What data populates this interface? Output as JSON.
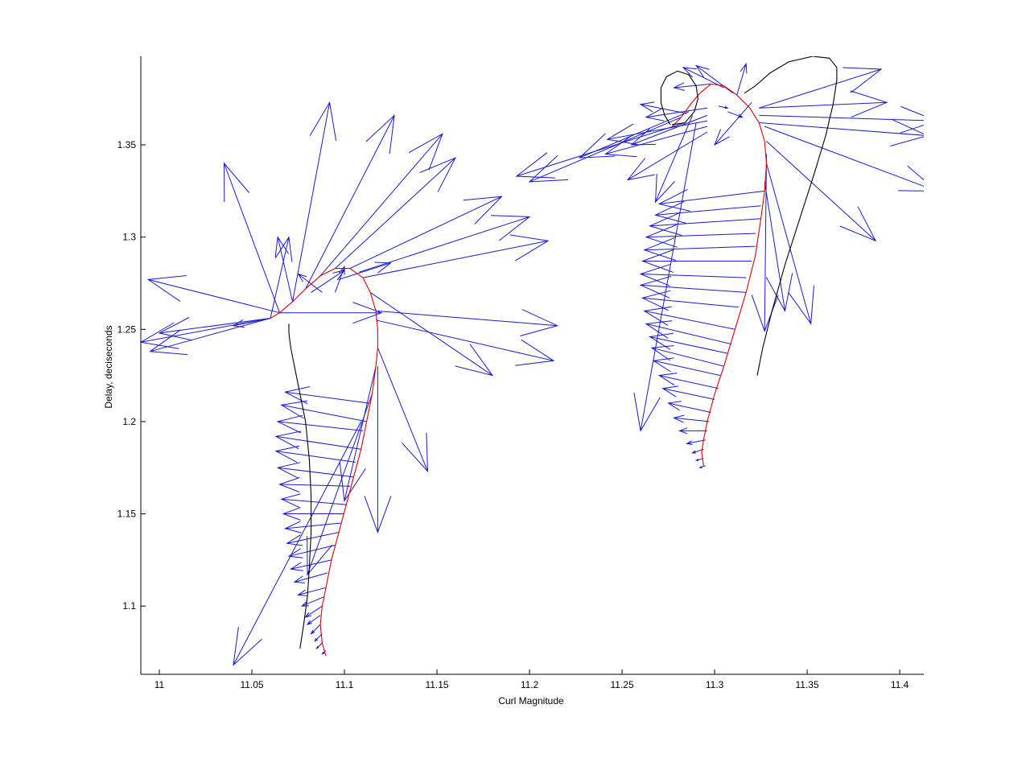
{
  "chart_data": {
    "type": "quiver",
    "title": "",
    "xlabel": "Curl Magnitude",
    "ylabel": "Delay, deciseconds",
    "xlim": [
      10.99,
      11.413
    ],
    "ylim": [
      1.063,
      1.398
    ],
    "xticks": [
      11,
      11.05,
      11.1,
      11.15,
      11.2,
      11.25,
      11.3,
      11.35,
      11.4
    ],
    "xtick_labels": [
      "11",
      "11.05",
      "11.1",
      "11.15",
      "11.2",
      "11.25",
      "11.3",
      "11.35",
      "11.4"
    ],
    "yticks": [
      1.1,
      1.15,
      1.2,
      1.25,
      1.3,
      1.35
    ],
    "ytick_labels": [
      "1.1",
      "1.15",
      "1.2",
      "1.25",
      "1.3",
      "1.35"
    ],
    "grid": false,
    "colors": {
      "arrows": "#1a1acc",
      "red_curve": "#dd0000",
      "black_curve": "#000000",
      "axes": "#000000"
    },
    "series": [
      {
        "kind": "line",
        "color": "red",
        "points": [
          [
            11.09,
            1.073
          ],
          [
            11.088,
            1.08
          ],
          [
            11.087,
            1.09
          ],
          [
            11.088,
            1.1
          ],
          [
            11.09,
            1.11
          ],
          [
            11.093,
            1.125
          ],
          [
            11.097,
            1.14
          ],
          [
            11.101,
            1.155
          ],
          [
            11.105,
            1.17
          ],
          [
            11.109,
            1.185
          ],
          [
            11.112,
            1.2
          ],
          [
            11.115,
            1.215
          ],
          [
            11.117,
            1.23
          ],
          [
            11.118,
            1.24
          ],
          [
            11.118,
            1.25
          ],
          [
            11.117,
            1.26
          ],
          [
            11.114,
            1.27
          ],
          [
            11.11,
            1.278
          ],
          [
            11.103,
            1.283
          ],
          [
            11.095,
            1.283
          ],
          [
            11.087,
            1.279
          ],
          [
            11.079,
            1.272
          ],
          [
            11.072,
            1.265
          ],
          [
            11.065,
            1.259
          ],
          [
            11.06,
            1.256
          ]
        ]
      },
      {
        "kind": "line",
        "color": "red",
        "points": [
          [
            11.294,
            1.176
          ],
          [
            11.293,
            1.183
          ],
          [
            11.294,
            1.19
          ],
          [
            11.296,
            1.2
          ],
          [
            11.3,
            1.215
          ],
          [
            11.305,
            1.23
          ],
          [
            11.311,
            1.25
          ],
          [
            11.317,
            1.27
          ],
          [
            11.322,
            1.29
          ],
          [
            11.325,
            1.31
          ],
          [
            11.327,
            1.325
          ],
          [
            11.328,
            1.34
          ],
          [
            11.327,
            1.352
          ],
          [
            11.324,
            1.362
          ],
          [
            11.319,
            1.37
          ],
          [
            11.312,
            1.377
          ],
          [
            11.305,
            1.382
          ],
          [
            11.298,
            1.383
          ],
          [
            11.292,
            1.378
          ],
          [
            11.287,
            1.372
          ],
          [
            11.282,
            1.365
          ],
          [
            11.277,
            1.36
          ]
        ]
      },
      {
        "kind": "line",
        "color": "black",
        "points": [
          [
            11.076,
            1.077
          ],
          [
            11.078,
            1.09
          ],
          [
            11.08,
            1.105
          ],
          [
            11.081,
            1.12
          ],
          [
            11.082,
            1.14
          ],
          [
            11.082,
            1.16
          ],
          [
            11.081,
            1.18
          ],
          [
            11.079,
            1.2
          ],
          [
            11.076,
            1.215
          ],
          [
            11.073,
            1.23
          ],
          [
            11.071,
            1.24
          ],
          [
            11.07,
            1.248
          ],
          [
            11.07,
            1.253
          ]
        ]
      },
      {
        "kind": "line",
        "color": "black",
        "points": [
          [
            11.323,
            1.225
          ],
          [
            11.326,
            1.24
          ],
          [
            11.331,
            1.26
          ],
          [
            11.338,
            1.285
          ],
          [
            11.346,
            1.31
          ],
          [
            11.354,
            1.335
          ],
          [
            11.36,
            1.355
          ],
          [
            11.364,
            1.372
          ],
          [
            11.366,
            1.385
          ],
          [
            11.366,
            1.392
          ],
          [
            11.362,
            1.397
          ],
          [
            11.353,
            1.398
          ],
          [
            11.34,
            1.395
          ],
          [
            11.33,
            1.389
          ],
          [
            11.322,
            1.382
          ],
          [
            11.316,
            1.378
          ]
        ]
      },
      {
        "kind": "line",
        "color": "black",
        "points": [
          [
            11.276,
            1.361
          ],
          [
            11.273,
            1.366
          ],
          [
            11.271,
            1.373
          ],
          [
            11.271,
            1.381
          ],
          [
            11.274,
            1.387
          ],
          [
            11.28,
            1.39
          ],
          [
            11.286,
            1.388
          ],
          [
            11.29,
            1.382
          ],
          [
            11.291,
            1.375
          ],
          [
            11.289,
            1.368
          ],
          [
            11.284,
            1.362
          ],
          [
            11.277,
            1.361
          ]
        ]
      },
      {
        "kind": "quiver",
        "color": "blue",
        "arrows": [
          [
            11.06,
            1.256,
            10.99,
            1.243
          ],
          [
            11.06,
            1.256,
            10.995,
            1.238
          ],
          [
            11.06,
            1.256,
            11.0,
            1.248
          ],
          [
            11.06,
            1.256,
            11.04,
            1.252
          ],
          [
            11.065,
            1.259,
            10.994,
            1.277
          ],
          [
            11.065,
            1.259,
            11.035,
            1.34
          ],
          [
            11.072,
            1.265,
            11.064,
            1.3
          ],
          [
            11.072,
            1.265,
            11.092,
            1.373
          ],
          [
            11.079,
            1.272,
            11.127,
            1.366
          ],
          [
            11.087,
            1.279,
            11.153,
            1.356
          ],
          [
            11.095,
            1.283,
            11.16,
            1.343
          ],
          [
            11.103,
            1.283,
            11.185,
            1.322
          ],
          [
            11.108,
            1.281,
            11.2,
            1.311
          ],
          [
            11.11,
            1.278,
            11.21,
            1.298
          ],
          [
            11.097,
            1.277,
            11.125,
            1.286
          ],
          [
            11.065,
            1.259,
            11.12,
            1.259
          ],
          [
            11.095,
            1.27,
            11.1,
            1.284
          ],
          [
            11.117,
            1.26,
            11.215,
            1.252
          ],
          [
            11.117,
            1.255,
            11.213,
            1.233
          ],
          [
            11.114,
            1.27,
            11.18,
            1.225
          ],
          [
            11.118,
            1.24,
            11.145,
            1.173
          ],
          [
            11.118,
            1.23,
            11.118,
            1.14
          ],
          [
            11.06,
            1.256,
            11.07,
            1.3
          ],
          [
            11.082,
            1.27,
            11.1,
            1.282
          ],
          [
            11.088,
            1.27,
            11.075,
            1.28
          ],
          [
            11.113,
            1.21,
            11.068,
            1.216
          ],
          [
            11.112,
            1.2,
            11.066,
            1.209
          ],
          [
            11.11,
            1.195,
            11.064,
            1.2
          ],
          [
            11.109,
            1.185,
            11.063,
            1.192
          ],
          [
            11.106,
            1.178,
            11.063,
            1.184
          ],
          [
            11.105,
            1.17,
            11.064,
            1.175
          ],
          [
            11.103,
            1.165,
            11.065,
            1.166
          ],
          [
            11.101,
            1.155,
            11.066,
            1.158
          ],
          [
            11.1,
            1.15,
            11.067,
            1.15
          ],
          [
            11.098,
            1.145,
            11.068,
            1.142
          ],
          [
            11.097,
            1.14,
            11.069,
            1.134
          ],
          [
            11.095,
            1.133,
            11.07,
            1.127
          ],
          [
            11.093,
            1.125,
            11.071,
            1.12
          ],
          [
            11.091,
            1.118,
            11.073,
            1.113
          ],
          [
            11.09,
            1.11,
            11.075,
            1.106
          ],
          [
            11.089,
            1.105,
            11.077,
            1.1
          ],
          [
            11.088,
            1.1,
            11.079,
            1.094
          ],
          [
            11.087,
            1.095,
            11.08,
            1.09
          ],
          [
            11.087,
            1.09,
            11.082,
            1.085
          ],
          [
            11.088,
            1.085,
            11.084,
            1.081
          ],
          [
            11.088,
            1.08,
            11.085,
            1.077
          ],
          [
            11.09,
            1.076,
            11.088,
            1.074
          ],
          [
            11.109,
            1.2,
            11.04,
            1.068
          ],
          [
            11.115,
            1.215,
            11.08,
            1.117
          ],
          [
            11.117,
            1.23,
            11.1,
            1.157
          ],
          [
            11.298,
            1.383,
            11.278,
            1.381
          ],
          [
            11.305,
            1.381,
            11.283,
            1.392
          ],
          [
            11.31,
            1.378,
            11.29,
            1.393
          ],
          [
            11.312,
            1.377,
            11.317,
            1.394
          ],
          [
            11.32,
            1.373,
            11.3,
            1.35
          ],
          [
            11.324,
            1.37,
            11.39,
            1.391
          ],
          [
            11.324,
            1.37,
            11.393,
            1.373
          ],
          [
            11.324,
            1.366,
            11.42,
            1.363
          ],
          [
            11.324,
            1.362,
            11.415,
            1.355
          ],
          [
            11.327,
            1.36,
            11.42,
            1.325
          ],
          [
            11.328,
            1.352,
            11.387,
            1.298
          ],
          [
            11.328,
            1.345,
            11.327,
            1.249
          ],
          [
            11.328,
            1.34,
            11.352,
            1.253
          ],
          [
            11.327,
            1.33,
            11.338,
            1.26
          ],
          [
            11.296,
            1.37,
            11.263,
            1.365
          ],
          [
            11.296,
            1.366,
            11.255,
            1.35
          ],
          [
            11.296,
            1.363,
            11.242,
            1.353
          ],
          [
            11.296,
            1.36,
            11.241,
            1.345
          ],
          [
            11.296,
            1.357,
            11.253,
            1.331
          ],
          [
            11.29,
            1.362,
            11.26,
            1.195
          ],
          [
            11.288,
            1.366,
            11.268,
            1.319
          ],
          [
            11.286,
            1.368,
            11.227,
            1.343
          ],
          [
            11.284,
            1.362,
            11.193,
            1.333
          ],
          [
            11.282,
            1.365,
            11.2,
            1.33
          ],
          [
            11.285,
            1.367,
            11.26,
            1.372
          ],
          [
            11.302,
            1.371,
            11.307,
            1.37
          ],
          [
            11.307,
            1.368,
            11.315,
            1.365
          ],
          [
            11.327,
            1.325,
            11.27,
            1.318
          ],
          [
            11.325,
            1.317,
            11.268,
            1.312
          ],
          [
            11.325,
            1.31,
            11.265,
            1.306
          ],
          [
            11.322,
            1.302,
            11.263,
            1.3
          ],
          [
            11.322,
            1.295,
            11.262,
            1.293
          ],
          [
            11.32,
            1.287,
            11.261,
            1.287
          ],
          [
            11.317,
            1.278,
            11.26,
            1.28
          ],
          [
            11.317,
            1.27,
            11.26,
            1.274
          ],
          [
            11.313,
            1.262,
            11.261,
            1.267
          ],
          [
            11.311,
            1.25,
            11.262,
            1.26
          ],
          [
            11.309,
            1.242,
            11.263,
            1.253
          ],
          [
            11.307,
            1.237,
            11.265,
            1.246
          ],
          [
            11.305,
            1.23,
            11.266,
            1.24
          ],
          [
            11.303,
            1.225,
            11.267,
            1.233
          ],
          [
            11.302,
            1.218,
            11.27,
            1.225
          ],
          [
            11.3,
            1.212,
            11.272,
            1.218
          ],
          [
            11.298,
            1.205,
            11.275,
            1.21
          ],
          [
            11.297,
            1.2,
            11.278,
            1.202
          ],
          [
            11.296,
            1.195,
            11.281,
            1.195
          ],
          [
            11.295,
            1.19,
            11.285,
            1.188
          ],
          [
            11.294,
            1.185,
            11.288,
            1.183
          ],
          [
            11.294,
            1.18,
            11.29,
            1.179
          ],
          [
            11.295,
            1.176,
            11.292,
            1.175
          ]
        ]
      }
    ]
  }
}
